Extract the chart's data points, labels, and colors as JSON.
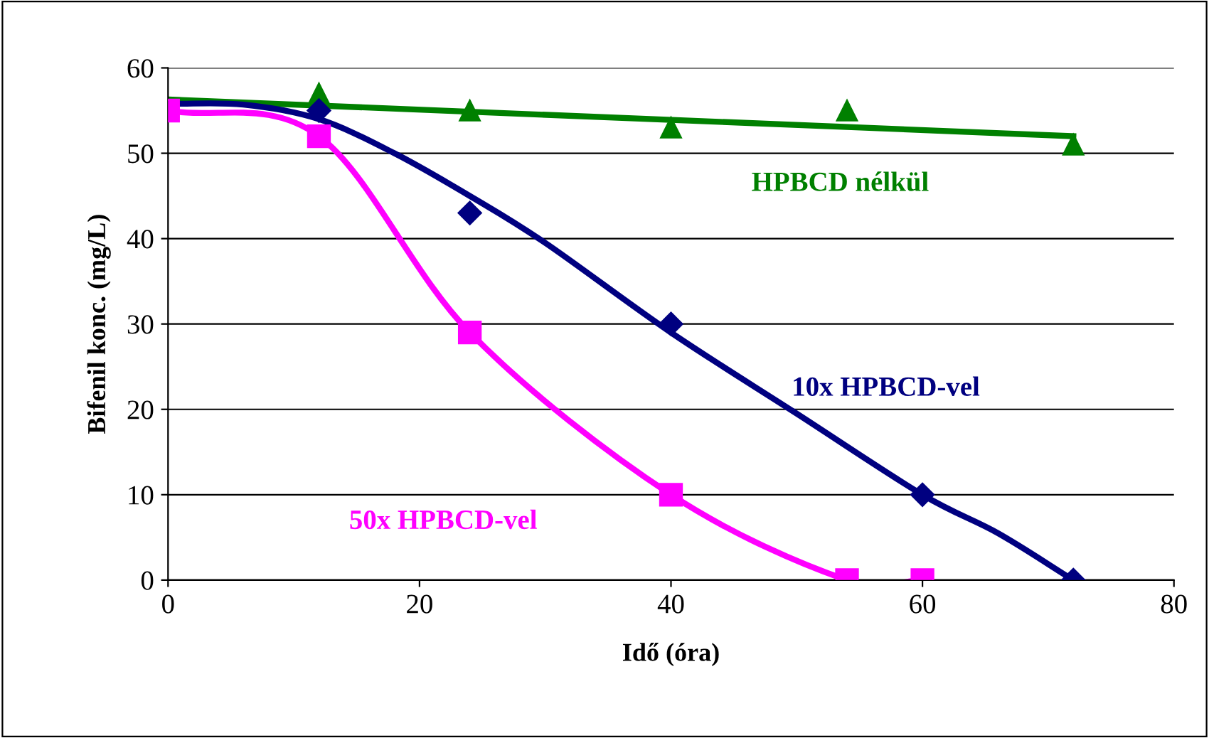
{
  "chart_data": {
    "type": "line",
    "xlabel": "Idő (óra)",
    "ylabel": "Bifenil konc. (mg/L)",
    "xlim": [
      0,
      80
    ],
    "ylim": [
      0,
      60
    ],
    "xticks": [
      0,
      20,
      40,
      60,
      80
    ],
    "yticks": [
      0,
      10,
      20,
      30,
      40,
      50,
      60
    ],
    "grid": "y",
    "legend": false,
    "series": [
      {
        "name": "HPBCD nélkül",
        "type": "scatter",
        "marker": "triangle",
        "color": "#008000",
        "x": [
          12,
          24,
          40,
          54,
          72
        ],
        "values": [
          57,
          55,
          53,
          55,
          51
        ]
      },
      {
        "type": "line",
        "marker": "none",
        "color": "#008000",
        "x": [
          0,
          72
        ],
        "values": [
          56.3,
          52
        ]
      },
      {
        "name": "10x HPBCD-vel",
        "type": "scatter",
        "marker": "diamond",
        "color": "#000080",
        "x": [
          12,
          24,
          40,
          60,
          72
        ],
        "values": [
          55,
          43,
          30,
          10,
          0
        ]
      },
      {
        "marker": "none",
        "color": "#000080",
        "x": [
          0,
          6,
          12,
          18,
          24,
          30,
          40,
          50,
          60,
          66,
          72
        ],
        "values": [
          55.8,
          55.7,
          54,
          50,
          45,
          39.5,
          29,
          19.5,
          10,
          5.5,
          0
        ]
      },
      {
        "name": "50x HPBCD-vel",
        "marker": "square",
        "color": "#ff00ff",
        "x": [
          0,
          12,
          24,
          40,
          54,
          60
        ],
        "values": [
          55,
          52,
          29,
          10,
          0,
          0
        ]
      }
    ]
  }
}
